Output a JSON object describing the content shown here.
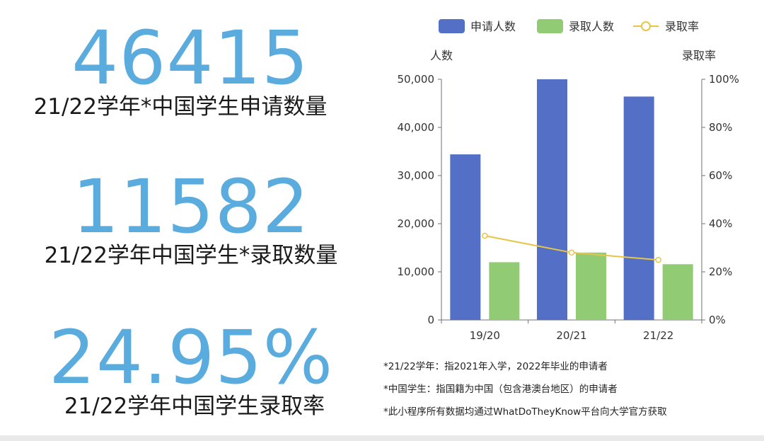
{
  "stats": [
    {
      "value": "46415",
      "caption": "21/22学年*中国学生申请数量"
    },
    {
      "value": "11582",
      "caption": "21/22学年中国学生*录取数量"
    },
    {
      "value": "24.95%",
      "caption": "21/22学年中国学生录取率"
    }
  ],
  "chart_data": {
    "type": "bar",
    "categories": [
      "19/20",
      "20/21",
      "21/22"
    ],
    "series": [
      {
        "name": "申请人数",
        "type": "bar",
        "axis": "left",
        "color": "#5470c6",
        "values": [
          34400,
          50000,
          46415
        ]
      },
      {
        "name": "录取人数",
        "type": "bar",
        "axis": "left",
        "color": "#91cc75",
        "values": [
          12000,
          14000,
          11582
        ]
      },
      {
        "name": "录取率",
        "type": "line",
        "axis": "right",
        "color": "#e8c547",
        "values": [
          35,
          28,
          24.95
        ]
      }
    ],
    "ylabel_left": "人数",
    "ylabel_right": "录取率",
    "ylim_left": [
      0,
      50000
    ],
    "ylim_right": [
      0,
      100
    ],
    "yticks_left": [
      "0",
      "10,000",
      "20,000",
      "30,000",
      "40,000",
      "50,000"
    ],
    "yticks_right": [
      "0%",
      "20%",
      "40%",
      "60%",
      "80%",
      "100%"
    ],
    "legend": "top",
    "grid": false
  },
  "notes": [
    "*21/22学年：指2021年入学，2022年毕业的申请者",
    "*中国学生：指国籍为中国（包含港澳台地区）的申请者",
    "*此小程序所有数据均通过WhatDoTheyKnow平台向大学官方获取"
  ]
}
